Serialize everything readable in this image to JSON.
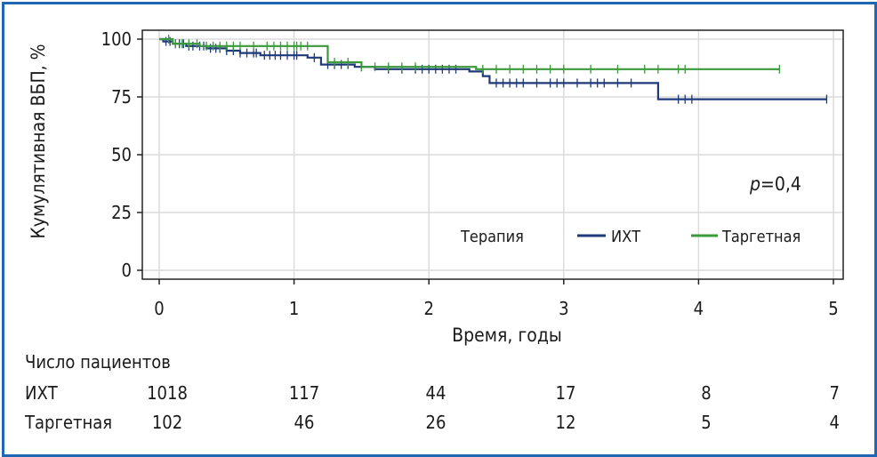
{
  "chart_data": {
    "type": "line",
    "title": "",
    "xlabel": "Время, годы",
    "ylabel": "Кумулятивная ВБП, %",
    "xlim": [
      0,
      5
    ],
    "ylim": [
      0,
      100
    ],
    "x_ticks": [
      "0",
      "1",
      "2",
      "3",
      "4",
      "5"
    ],
    "y_ticks": [
      "0",
      "25",
      "50",
      "75",
      "100"
    ],
    "grid": true,
    "annotation": {
      "p_italic": "p",
      "p_rest": "=0,4"
    },
    "legend": {
      "title": "Терапия",
      "position": "lower-right"
    },
    "series": [
      {
        "name": "ИХТ",
        "color": "#1f3a7a",
        "steps": [
          [
            0,
            100
          ],
          [
            0.03,
            99
          ],
          [
            0.1,
            98
          ],
          [
            0.2,
            97
          ],
          [
            0.35,
            96
          ],
          [
            0.5,
            95
          ],
          [
            0.6,
            94
          ],
          [
            0.75,
            93
          ],
          [
            1.05,
            93
          ],
          [
            1.1,
            92
          ],
          [
            1.2,
            89
          ],
          [
            1.45,
            88
          ],
          [
            1.6,
            87
          ],
          [
            2.3,
            86
          ],
          [
            2.4,
            84
          ],
          [
            2.45,
            81
          ],
          [
            3.7,
            81
          ],
          [
            3.7,
            74
          ],
          [
            4.95,
            74
          ]
        ],
        "censor_x": [
          0.05,
          0.08,
          0.12,
          0.15,
          0.18,
          0.22,
          0.25,
          0.3,
          0.33,
          0.38,
          0.42,
          0.45,
          0.5,
          0.55,
          0.6,
          0.65,
          0.7,
          0.72,
          0.78,
          0.82,
          0.86,
          0.9,
          0.95,
          1.0,
          1.02,
          1.15,
          1.25,
          1.3,
          1.35,
          1.4,
          1.5,
          1.7,
          1.8,
          1.9,
          1.95,
          2.0,
          2.05,
          2.1,
          2.15,
          2.2,
          2.5,
          2.55,
          2.6,
          2.65,
          2.7,
          2.8,
          2.9,
          2.95,
          3.0,
          3.1,
          3.2,
          3.25,
          3.3,
          3.4,
          3.5,
          3.85,
          3.9,
          3.95,
          4.95
        ]
      },
      {
        "name": "Таргетная",
        "color": "#3a9a3a",
        "steps": [
          [
            0,
            100
          ],
          [
            0.1,
            98
          ],
          [
            0.3,
            97
          ],
          [
            1.15,
            97
          ],
          [
            1.25,
            90
          ],
          [
            1.5,
            88
          ],
          [
            2.3,
            88
          ],
          [
            2.35,
            87
          ],
          [
            4.6,
            87
          ]
        ],
        "censor_x": [
          0.07,
          0.12,
          0.17,
          0.22,
          0.28,
          0.35,
          0.4,
          0.45,
          0.5,
          0.55,
          0.6,
          0.7,
          0.8,
          0.85,
          0.9,
          0.95,
          1.0,
          1.02,
          1.05,
          1.1,
          1.3,
          1.4,
          1.5,
          1.6,
          1.7,
          1.8,
          1.9,
          2.4,
          2.5,
          2.6,
          2.7,
          2.8,
          2.9,
          3.0,
          3.2,
          3.4,
          3.6,
          3.7,
          3.85,
          3.9,
          4.6
        ]
      }
    ]
  },
  "risk_table": {
    "title": "Число пациентов",
    "rows": [
      {
        "label": "ИХТ",
        "values": [
          "1018",
          "117",
          "44",
          "17",
          "8",
          "7"
        ]
      },
      {
        "label": "Таргетная",
        "values": [
          "102",
          "46",
          "26",
          "12",
          "5",
          "4"
        ]
      }
    ]
  }
}
